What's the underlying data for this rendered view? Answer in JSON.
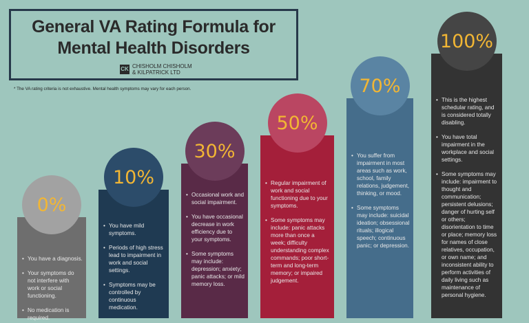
{
  "header": {
    "title_line1": "General VA Rating Formula for",
    "title_line2": "Mental Health Disorders",
    "logo_mark": "CK",
    "logo_line1": "CHISHOLM CHISHOLM",
    "logo_line2": "& KILPATRICK LTD"
  },
  "note": "* The VA rating criteria is not exhaustive.  Mental health symptoms may vary for each person.",
  "ratings": [
    {
      "percent": "0%",
      "color": "#6e6e6e",
      "circle_color": "#a2a2a2",
      "items": [
        "You have a diagnosis.",
        "Your symptoms do not interfere with work or social functioning.",
        "No medication is required."
      ]
    },
    {
      "percent": "10%",
      "color": "#1f3a52",
      "circle_color": "#2c4c6a",
      "items": [
        "You have mild symptoms.",
        "Periods of high stress lead to impairment in work and social settings.",
        "Symptoms may be controlled by continuous medication."
      ]
    },
    {
      "percent": "30%",
      "color": "#592a47",
      "circle_color": "#6c3c5a",
      "items": [
        "Occasional work and social impairment.",
        "You have occasional decrease in work efficiency due to your symptoms.",
        "Some symptoms may include: depression; anxiety; panic attacks; or mild memory loss."
      ]
    },
    {
      "percent": "50%",
      "color": "#a41f3a",
      "circle_color": "#ba4662",
      "items": [
        "Regular impairment of work and social functioning due to your symptoms.",
        "Some symptoms may include: panic attacks more than once a week; difficulty understanding complex commands; poor short-term and long-term memory; or impaired judgement."
      ]
    },
    {
      "percent": "70%",
      "color": "#456d8b",
      "circle_color": "#5a84a3",
      "items": [
        "You suffer from impairment in most areas such as work, school, family relations, judgement, thinking, or mood.",
        "Some symptoms may include: suicidal ideation; obsessional rituals; illogical speech; continuous panic; or depression."
      ]
    },
    {
      "percent": "100%",
      "color": "#333333",
      "circle_color": "#454545",
      "items": [
        "This is the highest schedular rating, and is considered totally disabling.",
        "You have total impairment in the workplace and social settings.",
        "Some symptoms may include: impairment to thought and communication; persistent delusions; danger of hurting self or others; disorientation to time or place; memory loss for names of close relatives, occupation, or own name; and inconsistent ability to perform activities of daily living such as maintenance of personal hygiene."
      ]
    }
  ]
}
